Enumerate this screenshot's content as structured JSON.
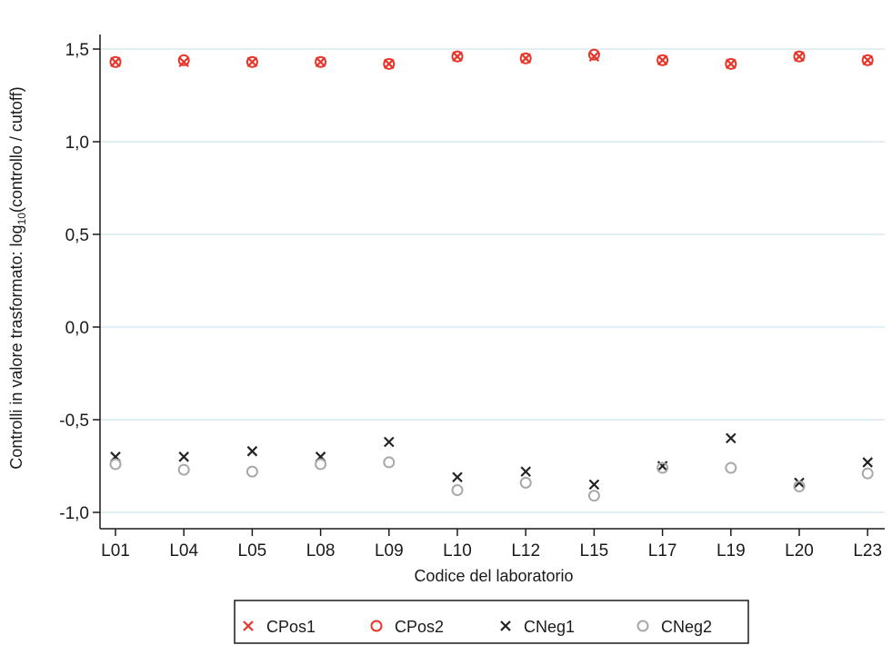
{
  "chart_data": {
    "type": "scatter",
    "title": "",
    "xlabel": "Codice del laboratorio",
    "ylabel_parts": [
      "Controlli in valore trasformato: log",
      "10",
      "(controllo / cutoff)"
    ],
    "categories": [
      "L01",
      "L04",
      "L05",
      "L08",
      "L09",
      "L10",
      "L12",
      "L15",
      "L17",
      "L19",
      "L20",
      "L23"
    ],
    "ylim": [
      -1.05,
      1.55
    ],
    "yticks": [
      1.5,
      1.0,
      0.5,
      0.0,
      -0.5,
      -1.0
    ],
    "ytick_labels": [
      "1,5",
      "1,0",
      "0,5",
      "0,0",
      "-0,5",
      "-1,0"
    ],
    "grid": true,
    "legend_position": "bottom",
    "series": [
      {
        "name": "CPos1",
        "marker": "x",
        "color": "#e8352a",
        "values": [
          1.43,
          1.43,
          1.43,
          1.43,
          1.42,
          1.46,
          1.45,
          1.46,
          1.44,
          1.42,
          1.46,
          1.44
        ]
      },
      {
        "name": "CPos2",
        "marker": "o",
        "color": "#e8352a",
        "values": [
          1.43,
          1.44,
          1.43,
          1.43,
          1.42,
          1.46,
          1.45,
          1.47,
          1.44,
          1.42,
          1.46,
          1.44
        ]
      },
      {
        "name": "CNeg1",
        "marker": "x",
        "color": "#222222",
        "values": [
          -0.7,
          -0.7,
          -0.67,
          -0.7,
          -0.62,
          -0.81,
          -0.78,
          -0.85,
          -0.75,
          -0.6,
          -0.84,
          -0.73
        ]
      },
      {
        "name": "CNeg2",
        "marker": "o",
        "color": "#a8a8a8",
        "values": [
          -0.74,
          -0.77,
          -0.78,
          -0.74,
          -0.73,
          -0.88,
          -0.84,
          -0.91,
          -0.76,
          -0.76,
          -0.86,
          -0.79
        ]
      }
    ]
  }
}
